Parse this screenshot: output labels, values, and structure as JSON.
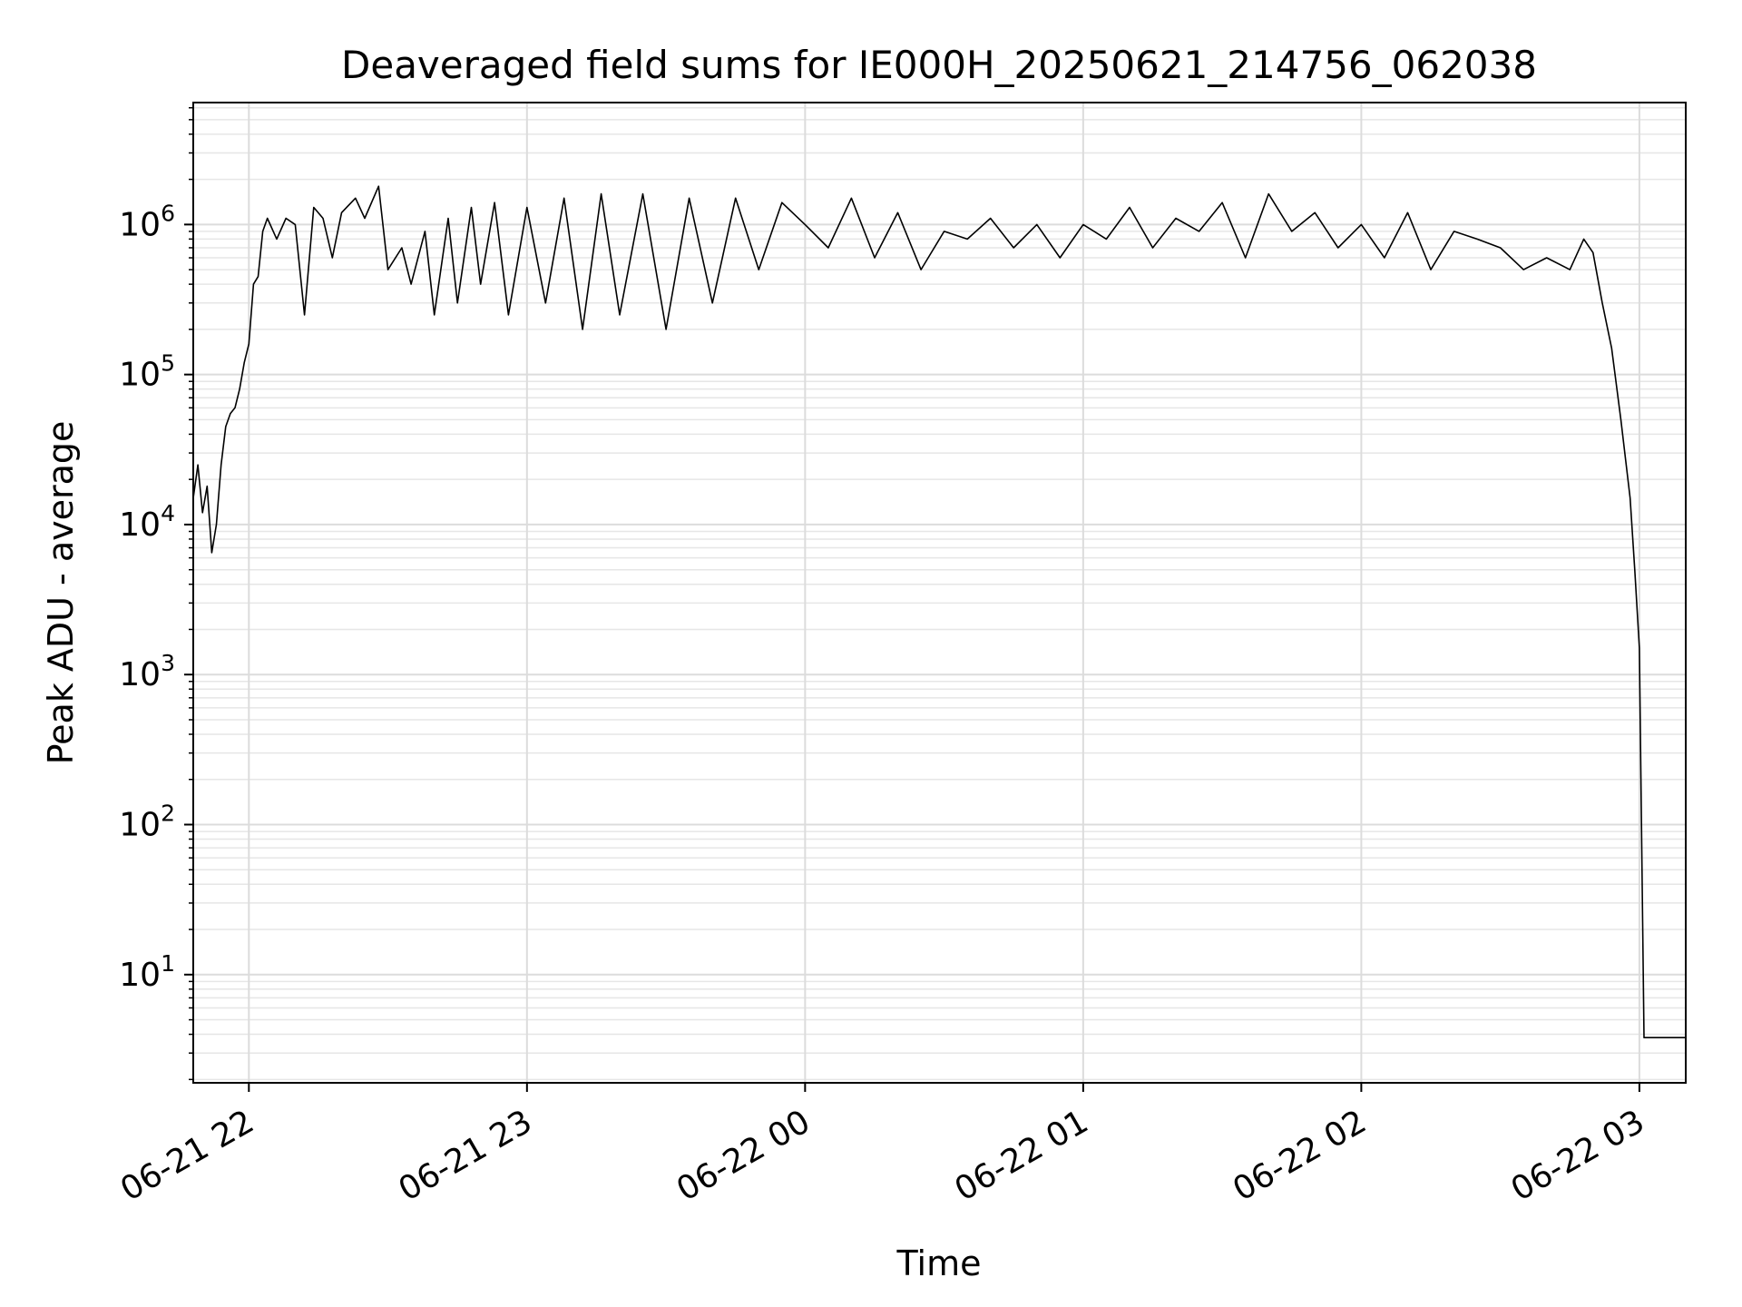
{
  "chart_data": {
    "type": "line",
    "title": "Deaveraged field sums for IE000H_20250621_214756_062038",
    "xlabel": "Time",
    "ylabel": "Peak ADU - average",
    "yscale": "log",
    "ylim": [
      1.9,
      6500000
    ],
    "xlim": [
      "2025-06-21 21:48",
      "2025-06-22 03:10"
    ],
    "grid": "both axes, major and minor, light gray",
    "line_color": "#000000",
    "x_ticks": [
      {
        "time": "2025-06-21 22:00",
        "label": "06-21 22"
      },
      {
        "time": "2025-06-21 23:00",
        "label": "06-21 23"
      },
      {
        "time": "2025-06-22 00:00",
        "label": "06-22 00"
      },
      {
        "time": "2025-06-22 01:00",
        "label": "06-22 01"
      },
      {
        "time": "2025-06-22 02:00",
        "label": "06-22 02"
      },
      {
        "time": "2025-06-22 03:00",
        "label": "06-22 03"
      }
    ],
    "y_ticks": [
      {
        "value": 10,
        "base": "10",
        "exp": "1"
      },
      {
        "value": 100,
        "base": "10",
        "exp": "2"
      },
      {
        "value": 1000,
        "base": "10",
        "exp": "3"
      },
      {
        "value": 10000,
        "base": "10",
        "exp": "4"
      },
      {
        "value": 100000,
        "base": "10",
        "exp": "5"
      },
      {
        "value": 1000000,
        "base": "10",
        "exp": "6"
      }
    ],
    "series": [
      {
        "x": [
          "2025-06-21 21:48",
          "2025-06-21 21:49",
          "2025-06-21 21:50",
          "2025-06-21 21:51",
          "2025-06-21 21:52",
          "2025-06-21 21:53",
          "2025-06-21 21:54",
          "2025-06-21 21:55",
          "2025-06-21 21:56",
          "2025-06-21 21:57",
          "2025-06-21 21:58",
          "2025-06-21 21:59",
          "2025-06-21 22:00",
          "2025-06-21 22:01",
          "2025-06-21 22:02",
          "2025-06-21 22:03",
          "2025-06-21 22:04",
          "2025-06-21 22:06",
          "2025-06-21 22:08",
          "2025-06-21 22:10",
          "2025-06-21 22:12",
          "2025-06-21 22:14",
          "2025-06-21 22:16",
          "2025-06-21 22:18",
          "2025-06-21 22:20",
          "2025-06-21 22:23",
          "2025-06-21 22:25",
          "2025-06-21 22:28",
          "2025-06-21 22:30",
          "2025-06-21 22:33",
          "2025-06-21 22:35",
          "2025-06-21 22:38",
          "2025-06-21 22:40",
          "2025-06-21 22:43",
          "2025-06-21 22:45",
          "2025-06-21 22:48",
          "2025-06-21 22:50",
          "2025-06-21 22:53",
          "2025-06-21 22:56",
          "2025-06-21 23:00",
          "2025-06-21 23:04",
          "2025-06-21 23:08",
          "2025-06-21 23:12",
          "2025-06-21 23:16",
          "2025-06-21 23:20",
          "2025-06-21 23:25",
          "2025-06-21 23:30",
          "2025-06-21 23:35",
          "2025-06-21 23:40",
          "2025-06-21 23:45",
          "2025-06-21 23:50",
          "2025-06-21 23:55",
          "2025-06-22 00:00",
          "2025-06-22 00:05",
          "2025-06-22 00:10",
          "2025-06-22 00:15",
          "2025-06-22 00:20",
          "2025-06-22 00:25",
          "2025-06-22 00:30",
          "2025-06-22 00:35",
          "2025-06-22 00:40",
          "2025-06-22 00:45",
          "2025-06-22 00:50",
          "2025-06-22 00:55",
          "2025-06-22 01:00",
          "2025-06-22 01:05",
          "2025-06-22 01:10",
          "2025-06-22 01:15",
          "2025-06-22 01:20",
          "2025-06-22 01:25",
          "2025-06-22 01:30",
          "2025-06-22 01:35",
          "2025-06-22 01:40",
          "2025-06-22 01:45",
          "2025-06-22 01:50",
          "2025-06-22 01:55",
          "2025-06-22 02:00",
          "2025-06-22 02:05",
          "2025-06-22 02:10",
          "2025-06-22 02:15",
          "2025-06-22 02:20",
          "2025-06-22 02:25",
          "2025-06-22 02:30",
          "2025-06-22 02:35",
          "2025-06-22 02:40",
          "2025-06-22 02:45",
          "2025-06-22 02:48",
          "2025-06-22 02:50",
          "2025-06-22 02:52",
          "2025-06-22 02:54",
          "2025-06-22 02:56",
          "2025-06-22 02:58",
          "2025-06-22 02:59",
          "2025-06-22 03:00",
          "2025-06-22 03:01",
          "2025-06-22 03:02",
          "2025-06-22 03:04",
          "2025-06-22 03:06",
          "2025-06-22 03:08",
          "2025-06-22 03:10"
        ],
        "y": [
          15000,
          25000,
          12000,
          18000,
          6500,
          10000,
          25000,
          45000,
          55000,
          60000,
          80000,
          120000,
          160000,
          400000,
          450000,
          900000,
          1100000,
          800000,
          1100000,
          1000000,
          250000,
          1300000,
          1100000,
          600000,
          1200000,
          1500000,
          1100000,
          1800000,
          500000,
          700000,
          400000,
          900000,
          250000,
          1100000,
          300000,
          1300000,
          400000,
          1400000,
          250000,
          1300000,
          300000,
          1500000,
          200000,
          1600000,
          250000,
          1600000,
          200000,
          1500000,
          300000,
          1500000,
          500000,
          1400000,
          1000000,
          700000,
          1500000,
          600000,
          1200000,
          500000,
          900000,
          800000,
          1100000,
          700000,
          1000000,
          600000,
          1000000,
          800000,
          1300000,
          700000,
          1100000,
          900000,
          1400000,
          600000,
          1600000,
          900000,
          1200000,
          700000,
          1000000,
          600000,
          1200000,
          500000,
          900000,
          800000,
          700000,
          500000,
          600000,
          500000,
          800000,
          650000,
          300000,
          150000,
          50000,
          15000,
          5000,
          1500,
          3.8,
          3.8,
          3.8,
          3.8,
          3.8,
          3.8
        ]
      }
    ]
  }
}
